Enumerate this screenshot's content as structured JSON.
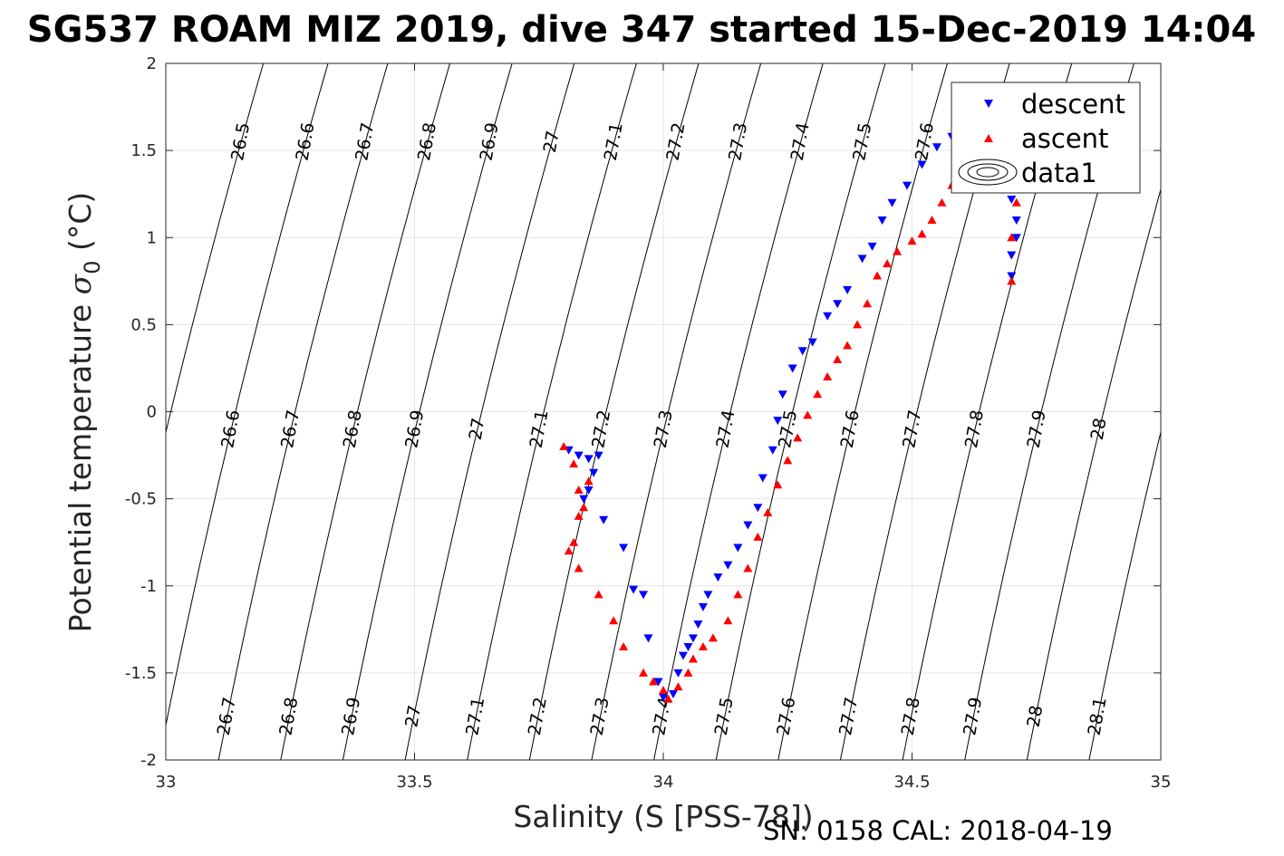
{
  "figure": {
    "title": "SG537 ROAM MIZ 2019, dive 347 started 15-Dec-2019 14:04",
    "footer": "SN: 0158  CAL: 2018-04-19"
  },
  "chart_data": {
    "type": "scatter",
    "title": "SG537 ROAM MIZ 2019, dive 347 started 15-Dec-2019 14:04",
    "xlabel": "Salinity (S [PSS-78])",
    "ylabel": "Potential temperature σ 0 (°C)",
    "ylabel_main": "Potential temperature ",
    "ylabel_symbol": "σ",
    "ylabel_sub": "0",
    "ylabel_unit": " (°C)",
    "xlim": [
      33,
      35
    ],
    "ylim": [
      -2,
      2
    ],
    "xticks": [
      "33",
      "33.5",
      "34",
      "34.5",
      "35"
    ],
    "yticks": [
      "2",
      "1.5",
      "1",
      "0.5",
      "0",
      "-0.5",
      "-1",
      "-1.5",
      "-2"
    ],
    "grid": true,
    "legend_position": "top-right",
    "legend": [
      "descent",
      "ascent",
      "data1"
    ],
    "colors": {
      "descent": "#0000ff",
      "ascent": "#ff0000",
      "contour": "#000000",
      "grid": "#e6e6e6"
    },
    "contour_levels": [
      {
        "level": "26.5",
        "s_at_t0": 33.01
      },
      {
        "level": "26.6",
        "s_at_t0": 33.14
      },
      {
        "level": "26.7",
        "s_at_t0": 33.26
      },
      {
        "level": "26.8",
        "s_at_t0": 33.385
      },
      {
        "level": "26.9",
        "s_at_t0": 33.51
      },
      {
        "level": "27",
        "s_at_t0": 33.635
      },
      {
        "level": "27.1",
        "s_at_t0": 33.76
      },
      {
        "level": "27.2",
        "s_at_t0": 33.885
      },
      {
        "level": "27.3",
        "s_at_t0": 34.01
      },
      {
        "level": "27.4",
        "s_at_t0": 34.135
      },
      {
        "level": "27.5",
        "s_at_t0": 34.26
      },
      {
        "level": "27.6",
        "s_at_t0": 34.385
      },
      {
        "level": "27.7",
        "s_at_t0": 34.51
      },
      {
        "level": "27.8",
        "s_at_t0": 34.635
      },
      {
        "level": "27.9",
        "s_at_t0": 34.76
      },
      {
        "level": "28",
        "s_at_t0": 34.885
      },
      {
        "level": "28.1",
        "s_at_t0": 35.01
      }
    ],
    "series": [
      {
        "name": "descent",
        "marker": "triangle-down",
        "x": [
          33.81,
          33.83,
          33.85,
          33.87,
          33.86,
          33.85,
          33.84,
          33.88,
          33.92,
          33.94,
          33.96,
          33.97,
          33.99,
          34.0,
          34.02,
          34.03,
          34.04,
          34.05,
          34.06,
          34.07,
          34.08,
          34.09,
          34.11,
          34.13,
          34.15,
          34.17,
          34.19,
          34.2,
          34.22,
          34.23,
          34.24,
          34.26,
          34.28,
          34.3,
          34.33,
          34.35,
          34.37,
          34.4,
          34.42,
          34.44,
          34.46,
          34.49,
          34.52,
          34.55,
          34.58,
          34.6,
          34.62,
          34.64,
          34.66,
          34.68,
          34.7,
          34.71,
          34.71,
          34.7,
          34.7
        ],
        "y": [
          -0.22,
          -0.25,
          -0.27,
          -0.25,
          -0.35,
          -0.45,
          -0.5,
          -0.62,
          -0.78,
          -1.02,
          -1.05,
          -1.3,
          -1.55,
          -1.64,
          -1.62,
          -1.5,
          -1.4,
          -1.35,
          -1.3,
          -1.22,
          -1.12,
          -1.05,
          -0.95,
          -0.88,
          -0.78,
          -0.65,
          -0.55,
          -0.38,
          -0.22,
          -0.05,
          0.1,
          0.25,
          0.35,
          0.4,
          0.55,
          0.62,
          0.7,
          0.88,
          0.95,
          1.1,
          1.2,
          1.3,
          1.42,
          1.52,
          1.58,
          1.62,
          1.55,
          1.5,
          1.42,
          1.35,
          1.22,
          1.1,
          1.0,
          0.9,
          0.78
        ]
      },
      {
        "name": "ascent",
        "marker": "triangle-up",
        "x": [
          33.8,
          33.82,
          33.83,
          33.84,
          33.85,
          33.83,
          33.82,
          33.81,
          33.83,
          33.87,
          33.9,
          33.92,
          33.96,
          33.98,
          34.0,
          34.01,
          34.03,
          34.05,
          34.06,
          34.08,
          34.1,
          34.13,
          34.15,
          34.17,
          34.19,
          34.21,
          34.23,
          34.25,
          34.27,
          34.29,
          34.31,
          34.33,
          34.35,
          34.37,
          34.39,
          34.41,
          34.43,
          34.45,
          34.47,
          34.5,
          34.52,
          34.54,
          34.56,
          34.58,
          34.6,
          34.62,
          34.65,
          34.68,
          34.7,
          34.71,
          34.7,
          34.7
        ],
        "y": [
          -0.2,
          -0.3,
          -0.45,
          -0.55,
          -0.4,
          -0.6,
          -0.75,
          -0.8,
          -0.9,
          -1.05,
          -1.2,
          -1.35,
          -1.5,
          -1.55,
          -1.6,
          -1.65,
          -1.58,
          -1.5,
          -1.42,
          -1.35,
          -1.3,
          -1.2,
          -1.05,
          -0.9,
          -0.72,
          -0.58,
          -0.42,
          -0.28,
          -0.15,
          -0.02,
          0.1,
          0.2,
          0.3,
          0.38,
          0.5,
          0.62,
          0.78,
          0.85,
          0.92,
          0.98,
          1.02,
          1.1,
          1.2,
          1.3,
          1.4,
          1.5,
          1.55,
          1.48,
          1.35,
          1.2,
          1.0,
          0.75
        ]
      },
      {
        "name": "data1",
        "marker": "contour"
      }
    ]
  }
}
